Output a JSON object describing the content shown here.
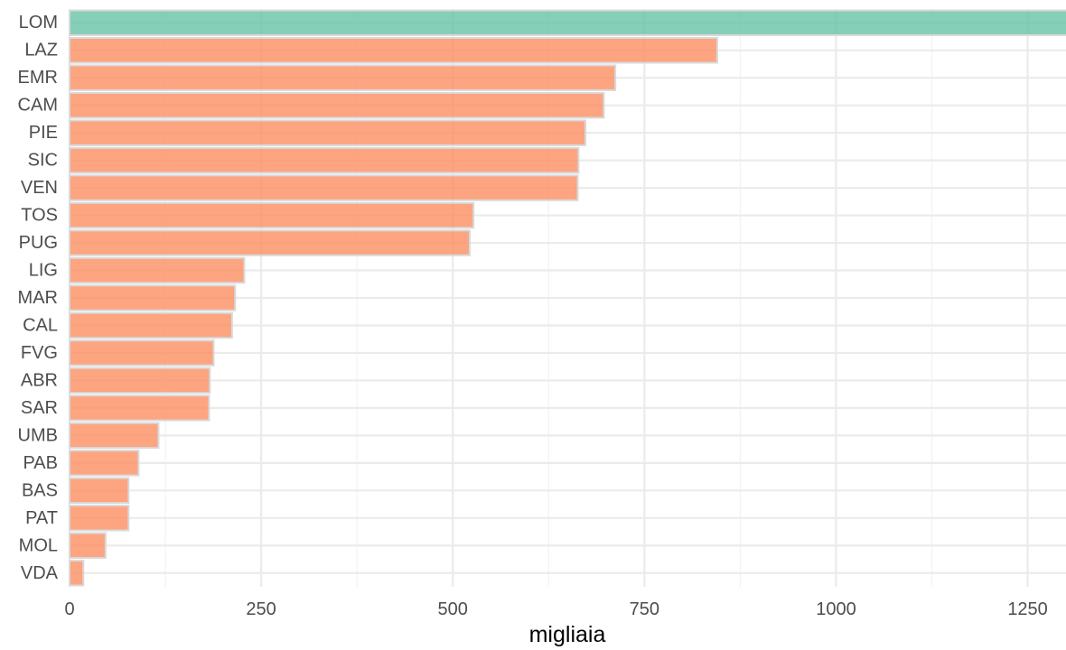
{
  "chart_data": {
    "type": "bar",
    "orientation": "horizontal",
    "categories": [
      "LOM",
      "LAZ",
      "EMR",
      "CAM",
      "PIE",
      "SIC",
      "VEN",
      "TOS",
      "PUG",
      "LIG",
      "MAR",
      "CAL",
      "FVG",
      "ABR",
      "SAR",
      "UMB",
      "PAB",
      "BAS",
      "PAT",
      "MOL",
      "VDA"
    ],
    "values": [
      1310,
      845,
      712,
      697,
      673,
      664,
      663,
      527,
      522,
      228,
      216,
      212,
      188,
      183,
      182,
      116,
      90,
      77,
      77,
      47,
      18
    ],
    "highlight_category": "LOM",
    "colors": {
      "highlight": "#66c2a5",
      "default": "#fc8d62"
    },
    "xlabel": "migliaia",
    "ylabel": "",
    "xlim": [
      0,
      1300
    ],
    "x_ticks": [
      0,
      250,
      500,
      750,
      1000,
      1250
    ],
    "x_tick_labels": [
      "0",
      "250",
      "500",
      "750",
      "1000",
      "1250"
    ],
    "grid": true,
    "legend": "none"
  }
}
